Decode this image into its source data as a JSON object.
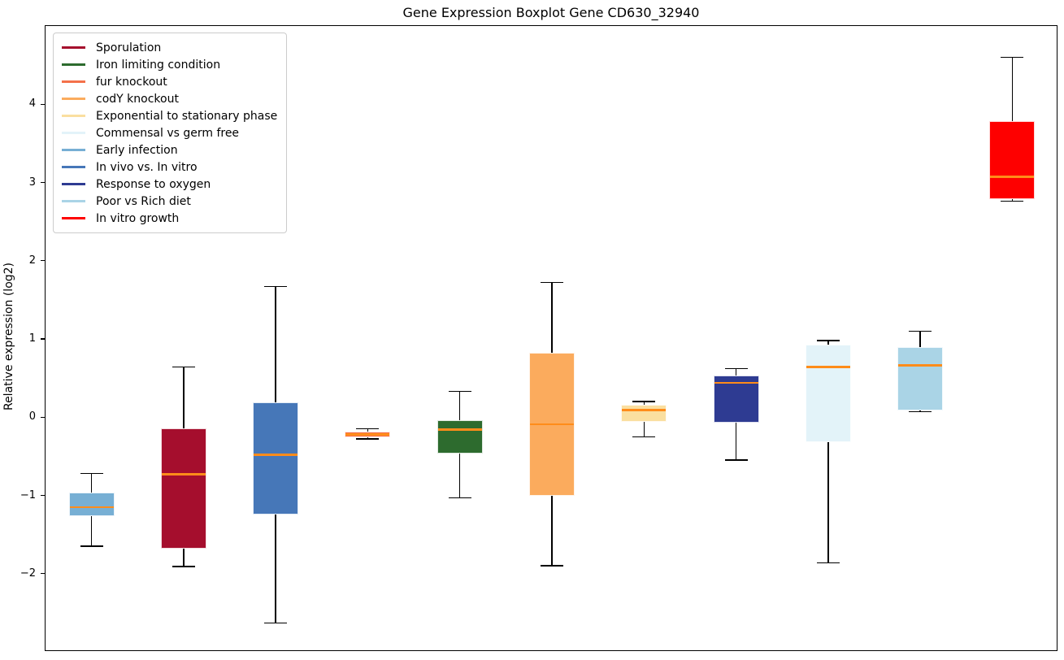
{
  "figure": {
    "title": "Gene Expression Boxplot Gene CD630_32940",
    "ylabel": "Relative expression (log2)",
    "background": "#ffffff"
  },
  "chart_data": {
    "type": "boxplot",
    "title": "Gene Expression Boxplot Gene CD630_32940",
    "xlabel": "",
    "ylabel": "Relative expression (log2)",
    "ylim": [
      -3,
      5
    ],
    "yticks": [
      -2,
      -1,
      0,
      1,
      2,
      3,
      4
    ],
    "x_tick_labels": [],
    "grid": false,
    "legend_position": "upper left",
    "median_color": "#ff8c1a",
    "whisker_color": "#000000",
    "box_edge_color": "rgba(255,255,255,0.85)",
    "legend": [
      {
        "label": "Sporulation",
        "color": "#a50e2d"
      },
      {
        "label": "Iron limiting condition",
        "color": "#2d6b2e"
      },
      {
        "label": "fur knockout",
        "color": "#f4714a"
      },
      {
        "label": "codY knockout",
        "color": "#fbab5d"
      },
      {
        "label": "Exponential to stationary phase",
        "color": "#fadfa0"
      },
      {
        "label": "Commensal vs germ free",
        "color": "#e3f3f9"
      },
      {
        "label": "Early infection",
        "color": "#77afd4"
      },
      {
        "label": "In vivo vs. In vitro",
        "color": "#4677b8"
      },
      {
        "label": "Response to oxygen",
        "color": "#2e3b92"
      },
      {
        "label": "Poor vs Rich diet",
        "color": "#aad4e6"
      },
      {
        "label": "In vitro growth",
        "color": "#fe0000"
      }
    ],
    "boxes": [
      {
        "condition": "Early infection",
        "color": "#77afd4",
        "whisker_low": -1.65,
        "q1": -1.27,
        "median": -1.15,
        "q3": -0.96,
        "whisker_high": -0.72
      },
      {
        "condition": "Sporulation",
        "color": "#a50e2d",
        "whisker_low": -1.91,
        "q1": -1.68,
        "median": -0.73,
        "q3": -0.14,
        "whisker_high": 0.64
      },
      {
        "condition": "In vivo vs. In vitro",
        "color": "#4677b8",
        "whisker_low": -2.63,
        "q1": -1.24,
        "median": -0.48,
        "q3": 0.19,
        "whisker_high": 1.67
      },
      {
        "condition": "fur knockout",
        "color": "#f4714a",
        "whisker_low": -0.28,
        "q1": -0.26,
        "median": -0.22,
        "q3": -0.18,
        "whisker_high": -0.15
      },
      {
        "condition": "Iron limiting condition",
        "color": "#2d6b2e",
        "whisker_low": -1.03,
        "q1": -0.47,
        "median": -0.16,
        "q3": -0.04,
        "whisker_high": 0.33
      },
      {
        "condition": "codY knockout",
        "color": "#fbab5d",
        "whisker_low": -1.9,
        "q1": -1.01,
        "median": -0.09,
        "q3": 0.82,
        "whisker_high": 1.72
      },
      {
        "condition": "Exponential to stationary phase",
        "color": "#fadfa0",
        "whisker_low": -0.25,
        "q1": -0.06,
        "median": 0.09,
        "q3": 0.16,
        "whisker_high": 0.2
      },
      {
        "condition": "Response to oxygen",
        "color": "#2e3b92",
        "whisker_low": -0.55,
        "q1": -0.07,
        "median": 0.44,
        "q3": 0.53,
        "whisker_high": 0.62
      },
      {
        "condition": "Commensal vs germ free",
        "color": "#e3f3f9",
        "whisker_low": -1.86,
        "q1": -0.32,
        "median": 0.64,
        "q3": 0.93,
        "whisker_high": 0.98
      },
      {
        "condition": "Poor vs Rich diet",
        "color": "#aad4e6",
        "whisker_low": 0.07,
        "q1": 0.09,
        "median": 0.66,
        "q3": 0.9,
        "whisker_high": 1.1
      },
      {
        "condition": "In vitro growth",
        "color": "#fe0000",
        "whisker_low": 2.76,
        "q1": 2.79,
        "median": 3.07,
        "q3": 3.78,
        "whisker_high": 4.6
      }
    ]
  }
}
